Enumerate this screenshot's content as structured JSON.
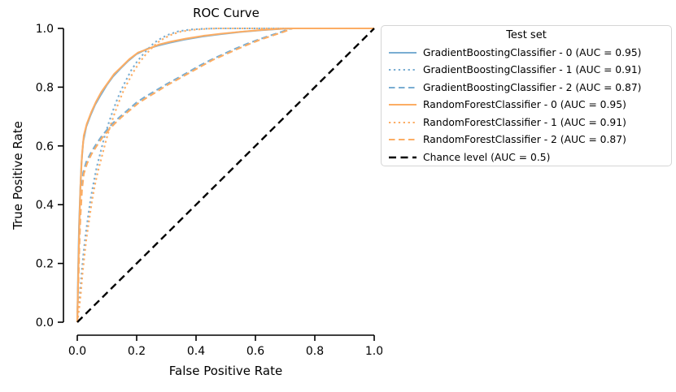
{
  "chart_data": {
    "type": "line",
    "title": "ROC Curve",
    "xlabel": "False Positive Rate",
    "ylabel": "True Positive Rate",
    "xlim": [
      0,
      1
    ],
    "ylim": [
      0,
      1
    ],
    "grid": false,
    "xtick_labels": [
      "0.0",
      "0.2",
      "0.4",
      "0.6",
      "0.8",
      "1.0"
    ],
    "ytick_labels": [
      "0.0",
      "0.2",
      "0.4",
      "0.6",
      "0.8",
      "1.0"
    ],
    "legend": {
      "title": "Test set",
      "position": "right of axes"
    },
    "colors": {
      "gradient_boosting": "#79add2",
      "random_forest": "#fcad64",
      "chance": "#000000"
    },
    "series": [
      {
        "key": "gradientboosting-0",
        "name": "GradientBoostingClassifier - 0 (AUC = 0.95)",
        "classifier": "GradientBoostingClassifier",
        "test_set": 0,
        "auc": 0.95,
        "style": "solid",
        "color": "#79add2",
        "points": [
          [
            0,
            0
          ],
          [
            0.003,
            0.18
          ],
          [
            0.006,
            0.33
          ],
          [
            0.01,
            0.45
          ],
          [
            0.014,
            0.54
          ],
          [
            0.02,
            0.615
          ],
          [
            0.03,
            0.665
          ],
          [
            0.045,
            0.705
          ],
          [
            0.06,
            0.74
          ],
          [
            0.08,
            0.775
          ],
          [
            0.1,
            0.808
          ],
          [
            0.12,
            0.836
          ],
          [
            0.145,
            0.863
          ],
          [
            0.17,
            0.888
          ],
          [
            0.2,
            0.913
          ],
          [
            0.235,
            0.93
          ],
          [
            0.27,
            0.941
          ],
          [
            0.31,
            0.951
          ],
          [
            0.36,
            0.962
          ],
          [
            0.42,
            0.972
          ],
          [
            0.48,
            0.98
          ],
          [
            0.55,
            0.988
          ],
          [
            0.62,
            0.994
          ],
          [
            0.68,
            0.998
          ],
          [
            0.72,
            1
          ],
          [
            1,
            1
          ]
        ]
      },
      {
        "key": "gradientboosting-1",
        "name": "GradientBoostingClassifier - 1 (AUC = 0.91)",
        "classifier": "GradientBoostingClassifier",
        "test_set": 1,
        "auc": 0.91,
        "style": "dotted",
        "color": "#79add2",
        "points": [
          [
            0,
            0
          ],
          [
            0.005,
            0.05
          ],
          [
            0.01,
            0.11
          ],
          [
            0.015,
            0.17
          ],
          [
            0.02,
            0.225
          ],
          [
            0.027,
            0.29
          ],
          [
            0.035,
            0.35
          ],
          [
            0.045,
            0.42
          ],
          [
            0.055,
            0.475
          ],
          [
            0.065,
            0.525
          ],
          [
            0.078,
            0.578
          ],
          [
            0.09,
            0.625
          ],
          [
            0.105,
            0.675
          ],
          [
            0.12,
            0.72
          ],
          [
            0.135,
            0.76
          ],
          [
            0.15,
            0.795
          ],
          [
            0.165,
            0.825
          ],
          [
            0.18,
            0.855
          ],
          [
            0.2,
            0.885
          ],
          [
            0.22,
            0.91
          ],
          [
            0.24,
            0.932
          ],
          [
            0.26,
            0.952
          ],
          [
            0.285,
            0.968
          ],
          [
            0.31,
            0.98
          ],
          [
            0.34,
            0.99
          ],
          [
            0.38,
            0.996
          ],
          [
            0.43,
            0.999
          ],
          [
            0.47,
            1
          ],
          [
            1,
            1
          ]
        ]
      },
      {
        "key": "gradientboosting-2",
        "name": "GradientBoostingClassifier - 2 (AUC = 0.87)",
        "classifier": "GradientBoostingClassifier",
        "test_set": 2,
        "auc": 0.87,
        "style": "dashed",
        "color": "#79add2",
        "points": [
          [
            0,
            0
          ],
          [
            0.003,
            0.15
          ],
          [
            0.006,
            0.28
          ],
          [
            0.01,
            0.38
          ],
          [
            0.015,
            0.46
          ],
          [
            0.02,
            0.51
          ],
          [
            0.03,
            0.545
          ],
          [
            0.045,
            0.575
          ],
          [
            0.06,
            0.6
          ],
          [
            0.08,
            0.63
          ],
          [
            0.1,
            0.655
          ],
          [
            0.12,
            0.678
          ],
          [
            0.145,
            0.7
          ],
          [
            0.17,
            0.722
          ],
          [
            0.2,
            0.748
          ],
          [
            0.23,
            0.768
          ],
          [
            0.26,
            0.786
          ],
          [
            0.3,
            0.81
          ],
          [
            0.34,
            0.832
          ],
          [
            0.375,
            0.852
          ],
          [
            0.41,
            0.872
          ],
          [
            0.45,
            0.893
          ],
          [
            0.49,
            0.912
          ],
          [
            0.53,
            0.93
          ],
          [
            0.57,
            0.947
          ],
          [
            0.61,
            0.962
          ],
          [
            0.65,
            0.976
          ],
          [
            0.69,
            0.989
          ],
          [
            0.72,
            1
          ],
          [
            1,
            1
          ]
        ]
      },
      {
        "key": "randomforest-0",
        "name": "RandomForestClassifier - 0 (AUC = 0.95)",
        "classifier": "RandomForestClassifier",
        "test_set": 0,
        "auc": 0.95,
        "style": "solid",
        "color": "#fcad64",
        "points": [
          [
            0,
            0
          ],
          [
            0.004,
            0.2
          ],
          [
            0.007,
            0.34
          ],
          [
            0.011,
            0.47
          ],
          [
            0.016,
            0.57
          ],
          [
            0.022,
            0.635
          ],
          [
            0.032,
            0.675
          ],
          [
            0.047,
            0.715
          ],
          [
            0.063,
            0.75
          ],
          [
            0.082,
            0.785
          ],
          [
            0.103,
            0.815
          ],
          [
            0.124,
            0.845
          ],
          [
            0.148,
            0.868
          ],
          [
            0.175,
            0.895
          ],
          [
            0.205,
            0.918
          ],
          [
            0.238,
            0.93
          ],
          [
            0.275,
            0.945
          ],
          [
            0.315,
            0.955
          ],
          [
            0.365,
            0.965
          ],
          [
            0.425,
            0.975
          ],
          [
            0.485,
            0.982
          ],
          [
            0.555,
            0.989
          ],
          [
            0.625,
            0.995
          ],
          [
            0.685,
            0.999
          ],
          [
            0.725,
            1
          ],
          [
            1,
            1
          ]
        ]
      },
      {
        "key": "randomforest-1",
        "name": "RandomForestClassifier - 1 (AUC = 0.91)",
        "classifier": "RandomForestClassifier",
        "test_set": 1,
        "auc": 0.91,
        "style": "dotted",
        "color": "#fcad64",
        "points": [
          [
            0,
            0
          ],
          [
            0.006,
            0.045
          ],
          [
            0.012,
            0.1
          ],
          [
            0.017,
            0.16
          ],
          [
            0.023,
            0.215
          ],
          [
            0.03,
            0.28
          ],
          [
            0.039,
            0.34
          ],
          [
            0.049,
            0.41
          ],
          [
            0.059,
            0.465
          ],
          [
            0.07,
            0.515
          ],
          [
            0.083,
            0.565
          ],
          [
            0.096,
            0.615
          ],
          [
            0.11,
            0.665
          ],
          [
            0.126,
            0.712
          ],
          [
            0.141,
            0.752
          ],
          [
            0.156,
            0.788
          ],
          [
            0.172,
            0.82
          ],
          [
            0.188,
            0.85
          ],
          [
            0.208,
            0.882
          ],
          [
            0.228,
            0.908
          ],
          [
            0.248,
            0.93
          ],
          [
            0.268,
            0.95
          ],
          [
            0.292,
            0.966
          ],
          [
            0.318,
            0.979
          ],
          [
            0.348,
            0.989
          ],
          [
            0.388,
            0.995
          ],
          [
            0.438,
            0.999
          ],
          [
            0.478,
            1
          ],
          [
            1,
            1
          ]
        ]
      },
      {
        "key": "randomforest-2",
        "name": "RandomForestClassifier - 2 (AUC = 0.87)",
        "classifier": "RandomForestClassifier",
        "test_set": 2,
        "auc": 0.87,
        "style": "dashed",
        "color": "#fcad64",
        "points": [
          [
            0,
            0
          ],
          [
            0.004,
            0.14
          ],
          [
            0.007,
            0.26
          ],
          [
            0.011,
            0.365
          ],
          [
            0.016,
            0.45
          ],
          [
            0.022,
            0.505
          ],
          [
            0.033,
            0.54
          ],
          [
            0.048,
            0.572
          ],
          [
            0.064,
            0.598
          ],
          [
            0.084,
            0.628
          ],
          [
            0.104,
            0.652
          ],
          [
            0.124,
            0.674
          ],
          [
            0.149,
            0.698
          ],
          [
            0.175,
            0.72
          ],
          [
            0.205,
            0.745
          ],
          [
            0.235,
            0.765
          ],
          [
            0.265,
            0.783
          ],
          [
            0.305,
            0.808
          ],
          [
            0.345,
            0.83
          ],
          [
            0.38,
            0.85
          ],
          [
            0.415,
            0.87
          ],
          [
            0.455,
            0.892
          ],
          [
            0.495,
            0.91
          ],
          [
            0.535,
            0.928
          ],
          [
            0.575,
            0.945
          ],
          [
            0.615,
            0.961
          ],
          [
            0.655,
            0.975
          ],
          [
            0.695,
            0.988
          ],
          [
            0.725,
            1
          ],
          [
            1,
            1
          ]
        ]
      },
      {
        "key": "chance",
        "name": "Chance level (AUC = 0.5)",
        "classifier": "Chance level",
        "auc": 0.5,
        "style": "chance-dashed",
        "color": "#000000",
        "points": [
          [
            0,
            0
          ],
          [
            1,
            1
          ]
        ]
      }
    ]
  }
}
